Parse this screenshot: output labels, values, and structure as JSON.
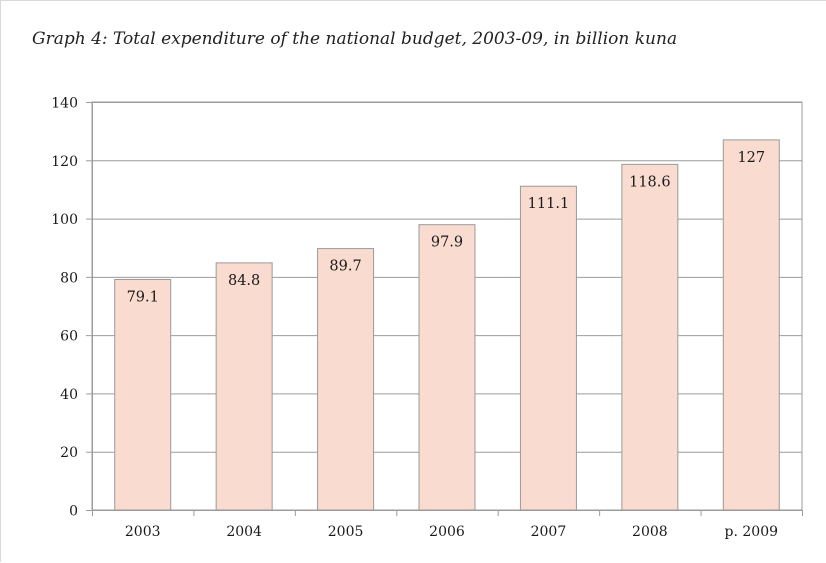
{
  "chart_data": {
    "type": "bar",
    "title": "Graph 4: Total expenditure of the national budget, 2003-09, in billion kuna",
    "xlabel": "",
    "ylabel": "",
    "categories": [
      "2003",
      "2004",
      "2005",
      "2006",
      "2007",
      "2008",
      "p. 2009"
    ],
    "values": [
      79.1,
      84.8,
      89.7,
      97.9,
      111.1,
      118.6,
      127
    ],
    "data_labels": [
      "79.1",
      "84.8",
      "89.7",
      "97.9",
      "111.1",
      "118.6",
      "127"
    ],
    "ylim": [
      0,
      140
    ],
    "y_ticks": [
      0,
      20,
      40,
      60,
      80,
      100,
      120,
      140
    ],
    "y_tick_labels": [
      "0",
      "20",
      "40",
      "60",
      "80",
      "100",
      "120",
      "140"
    ],
    "grid": true,
    "legend": "none",
    "colors": {
      "bar_fill": "#fadbd0",
      "bar_stroke": "#9a9a9a",
      "grid": "#9c9c9c",
      "axis": "#9c9c9c",
      "text": "#1a1a1a"
    }
  }
}
